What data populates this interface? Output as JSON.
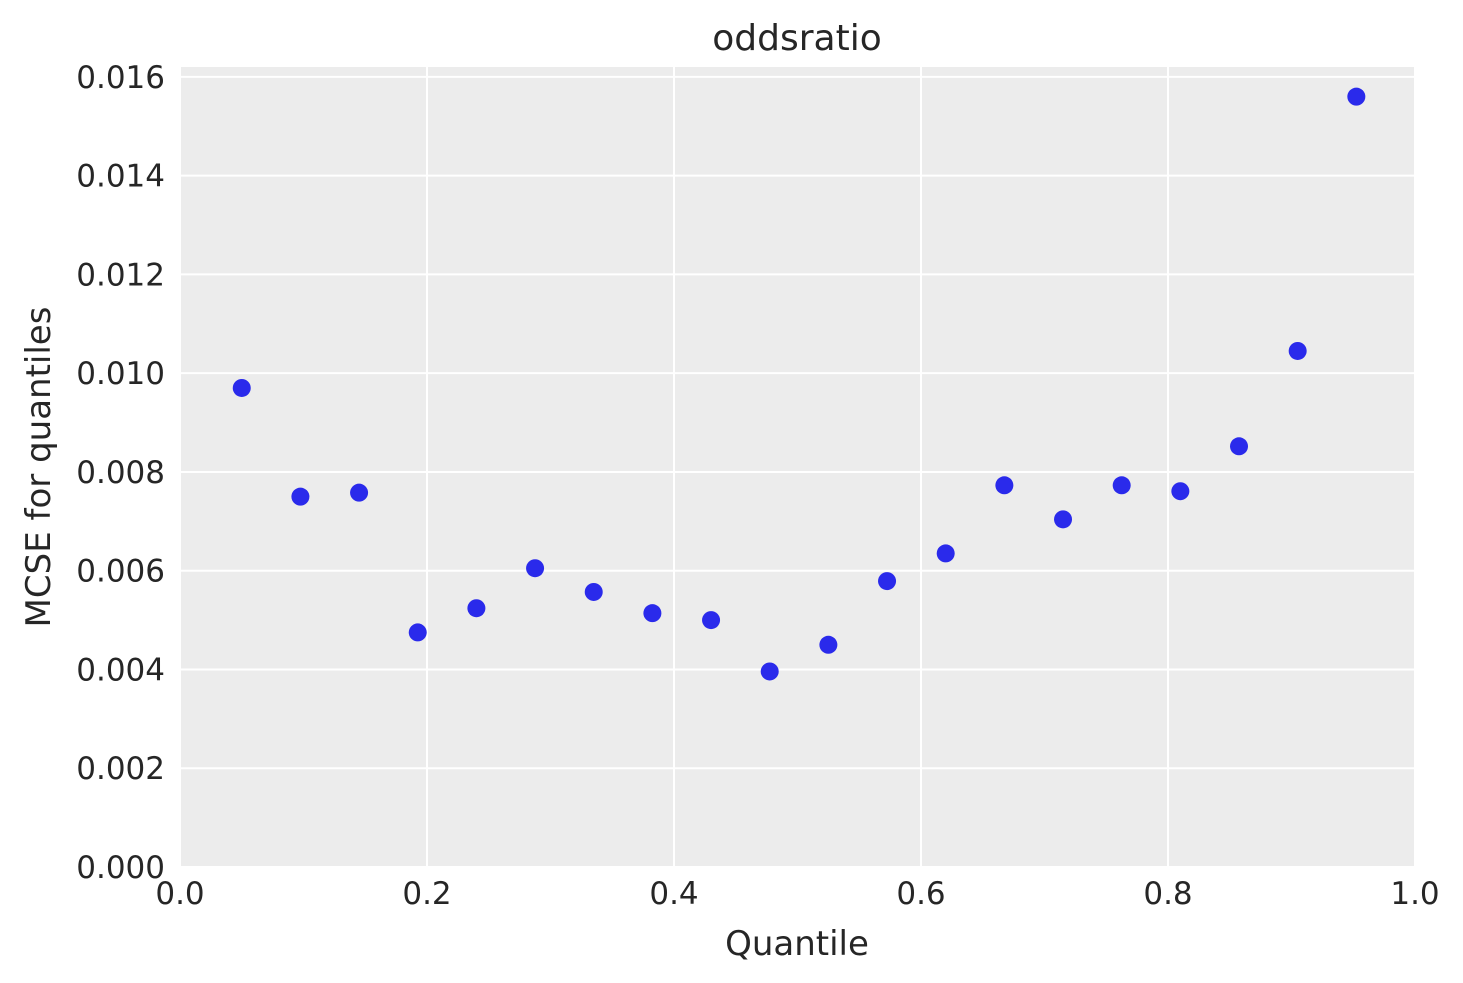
{
  "chart_data": {
    "type": "scatter",
    "title": "oddsratio",
    "xlabel": "Quantile",
    "ylabel": "MCSE for quantiles",
    "xlim": [
      0.0,
      1.0
    ],
    "ylim": [
      0.0,
      0.0162
    ],
    "xticks": [
      "0.0",
      "0.2",
      "0.4",
      "0.6",
      "0.8",
      "1.0"
    ],
    "xtick_values": [
      0.0,
      0.2,
      0.4,
      0.6,
      0.8,
      1.0
    ],
    "yticks": [
      "0.000",
      "0.002",
      "0.004",
      "0.006",
      "0.008",
      "0.010",
      "0.012",
      "0.014",
      "0.016"
    ],
    "ytick_values": [
      0.0,
      0.002,
      0.004,
      0.006,
      0.008,
      0.01,
      0.012,
      0.014,
      0.016
    ],
    "grid": true,
    "colors": {
      "background": "#ececec",
      "grid": "#ffffff",
      "point": "#2a2aeb",
      "text": "#262626"
    },
    "x": [
      0.05,
      0.0975,
      0.145,
      0.1925,
      0.24,
      0.2875,
      0.335,
      0.3825,
      0.43,
      0.4775,
      0.525,
      0.5725,
      0.62,
      0.6675,
      0.715,
      0.7625,
      0.81,
      0.8575,
      0.905,
      0.9525
    ],
    "y": [
      0.0097,
      0.0075,
      0.00758,
      0.00475,
      0.00524,
      0.00605,
      0.00557,
      0.00514,
      0.005,
      0.00396,
      0.0045,
      0.00579,
      0.00635,
      0.00773,
      0.00704,
      0.00773,
      0.00761,
      0.00852,
      0.01045,
      0.0156
    ]
  }
}
